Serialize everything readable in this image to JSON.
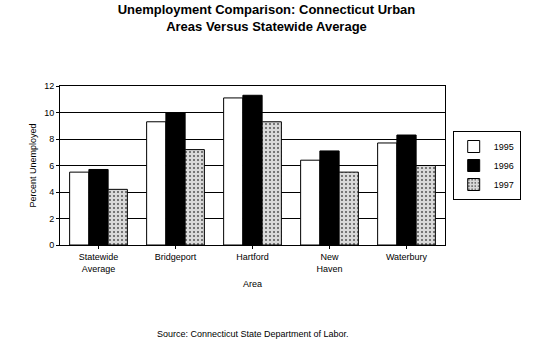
{
  "chart_data": {
    "type": "bar",
    "title": "Unemployment Comparison: Connecticut Urban Areas Versus Statewide Average",
    "x_label": "Area",
    "y_label": "Percent Unemployed",
    "annotations": [
      "Source: Connecticut State Department of Labor."
    ],
    "categories": [
      "Statewide Average",
      "Bridgeport",
      "Hartford",
      "New Haven",
      "Waterbury"
    ],
    "series": [
      {
        "name": "1995",
        "color": "#ffffff",
        "values": [
          5.5,
          9.3,
          11.1,
          6.4,
          7.7
        ]
      },
      {
        "name": "1996",
        "color": "#000000",
        "values": [
          5.7,
          10.0,
          11.3,
          7.1,
          8.3
        ]
      },
      {
        "name": "1997",
        "color": "#d9d9d9",
        "values": [
          4.2,
          7.2,
          9.3,
          5.5,
          6.0
        ]
      }
    ],
    "ylim": [
      0,
      12
    ],
    "yticks": [
      0,
      2,
      4,
      6,
      8,
      10,
      12
    ],
    "grid": true,
    "legend": "right"
  }
}
